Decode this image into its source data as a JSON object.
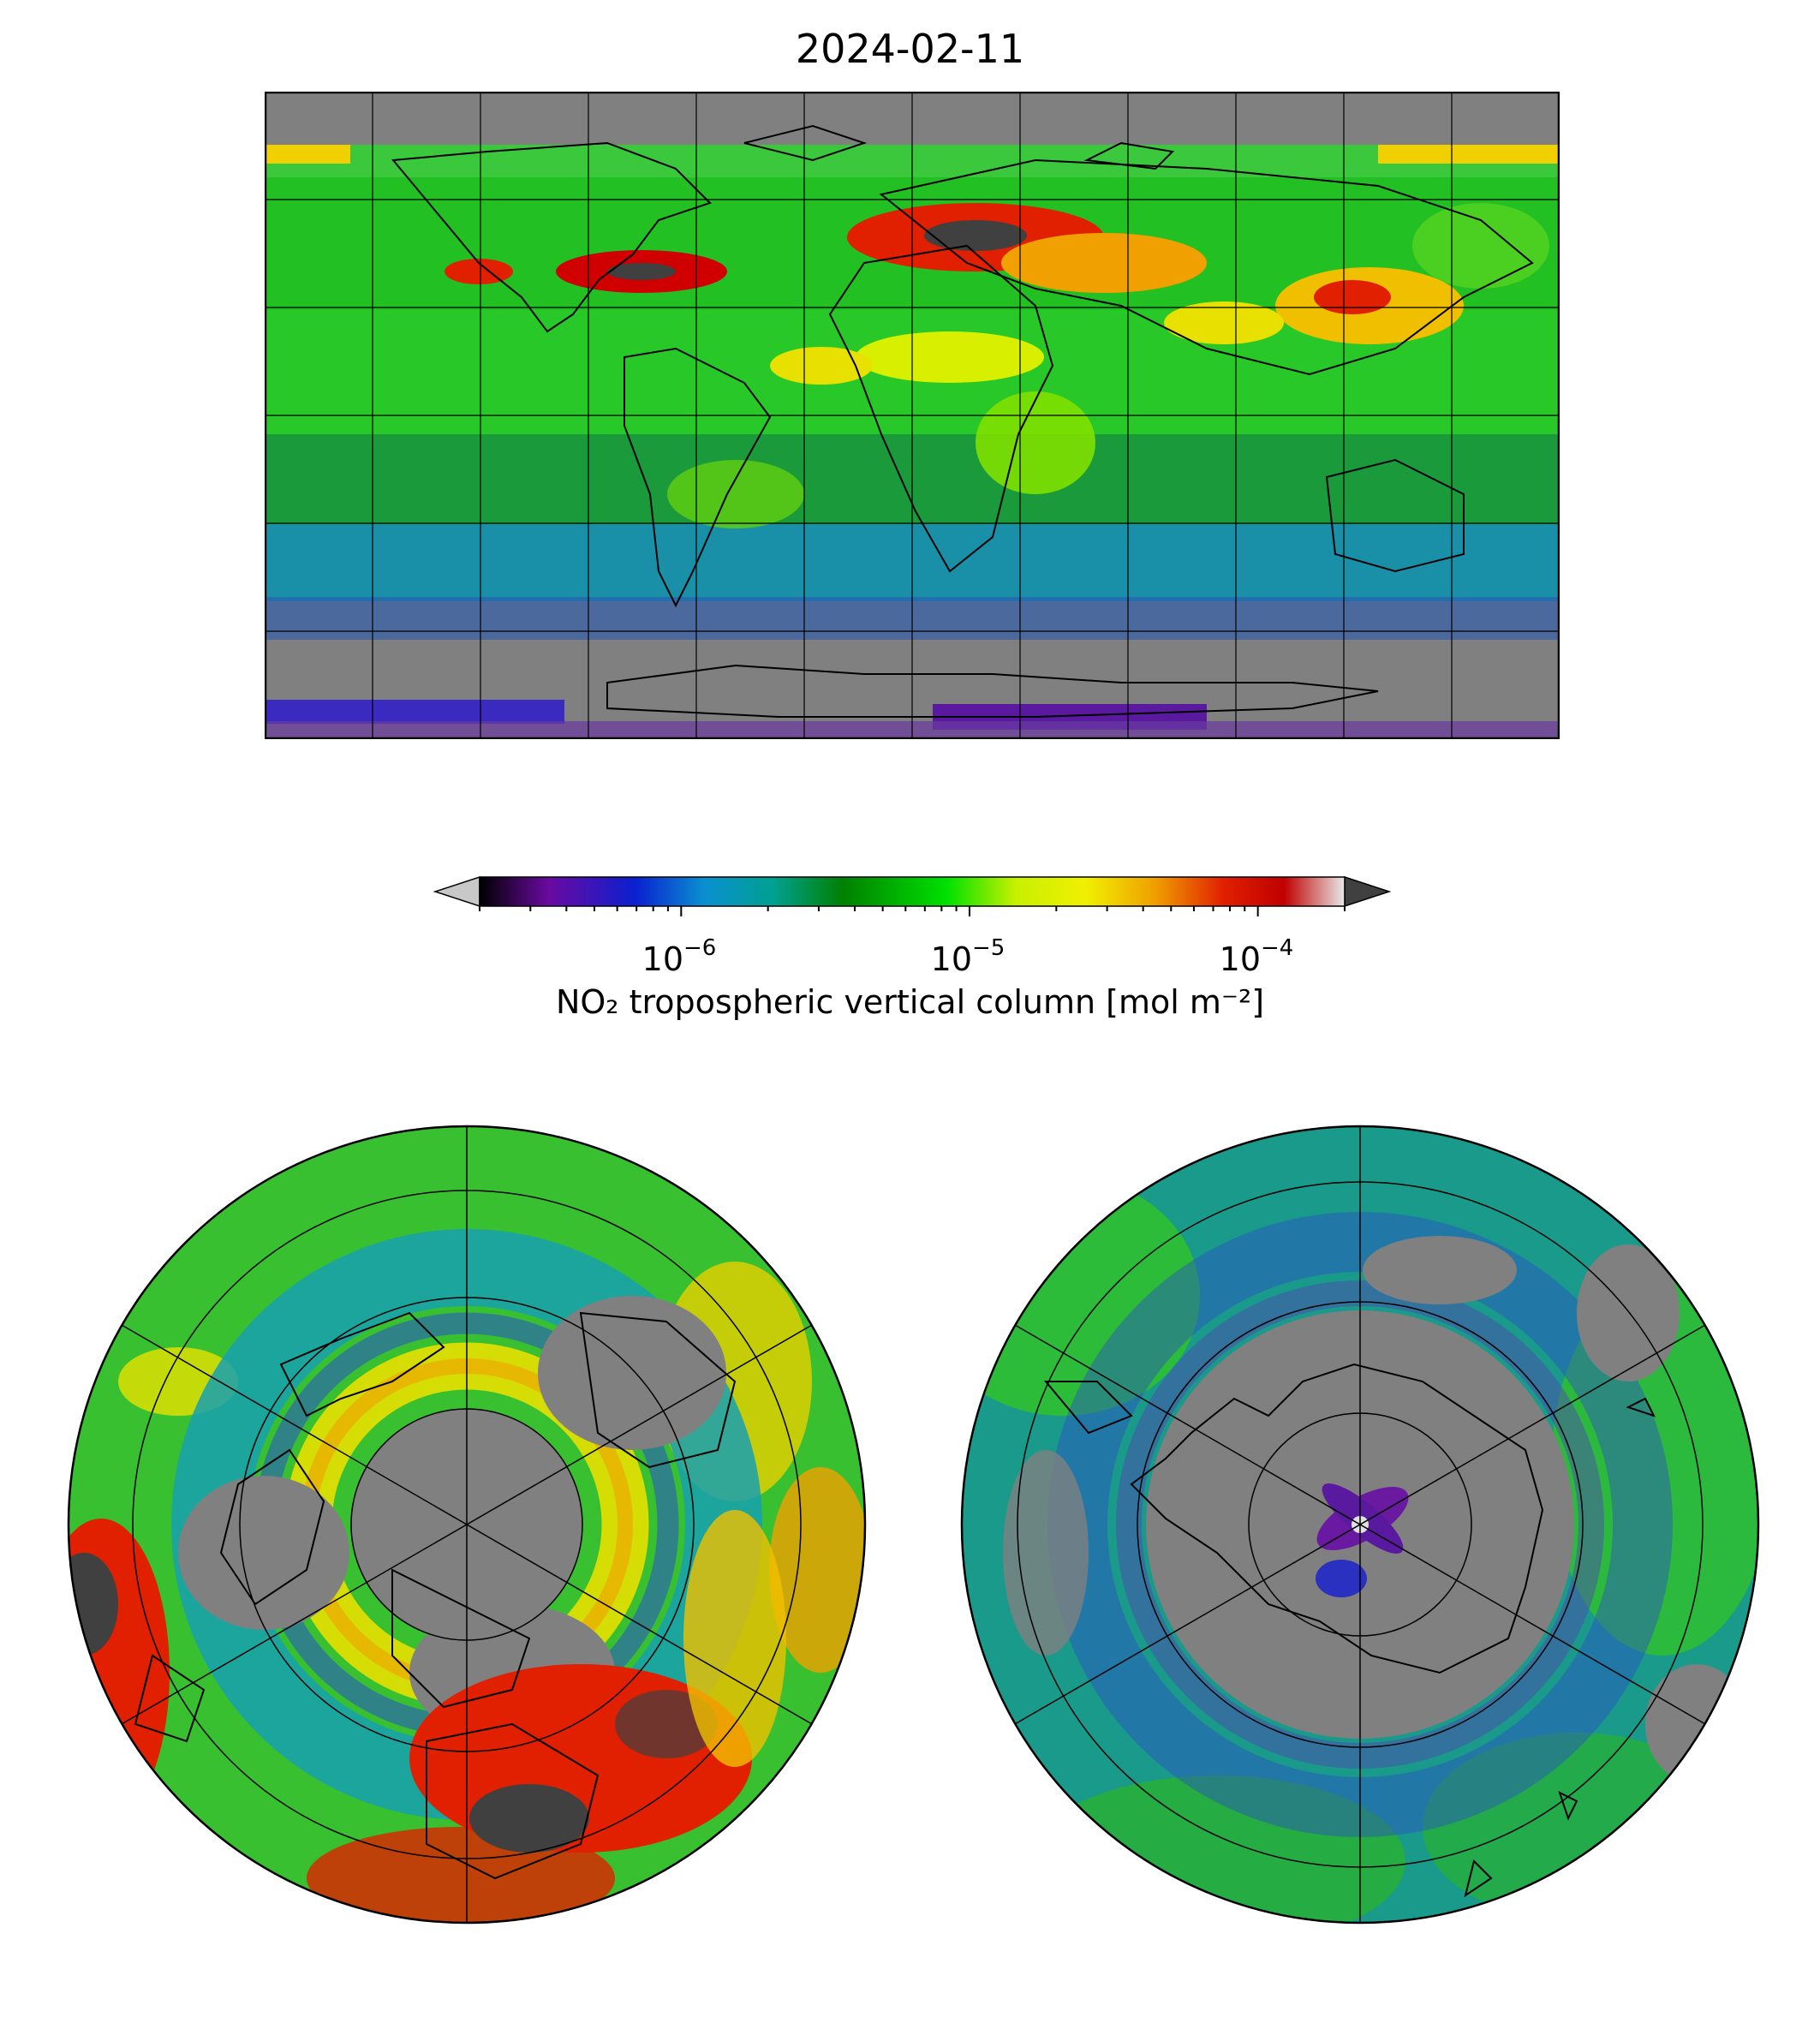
{
  "title": "2024-02-11",
  "colorbar": {
    "label": "NO₂ tropospheric vertical column [mol m⁻²]",
    "scale": "log",
    "range": [
      2e-07,
      0.0002
    ],
    "extend": "both",
    "ticks": [
      {
        "base": "10",
        "exp": "−6",
        "value": 1e-06
      },
      {
        "base": "10",
        "exp": "−5",
        "value": 1e-05
      },
      {
        "base": "10",
        "exp": "−4",
        "value": 0.0001
      }
    ],
    "colors": {
      "under": "#c8c8c8",
      "over": "#404040",
      "nodata": "#808080",
      "stops": [
        "#000000",
        "#6a0aa0",
        "#0a20d0",
        "#0a90d0",
        "#00a090",
        "#008000",
        "#30d020",
        "#00e000",
        "#c8f000",
        "#f0f000",
        "#f0a000",
        "#e02000",
        "#c00000",
        "#e8e8e8"
      ]
    }
  },
  "panels": [
    {
      "name": "global",
      "projection": "plate-carree"
    },
    {
      "name": "north-polar",
      "projection": "north-polar-stereographic"
    },
    {
      "name": "south-polar",
      "projection": "south-polar-stereographic"
    }
  ]
}
